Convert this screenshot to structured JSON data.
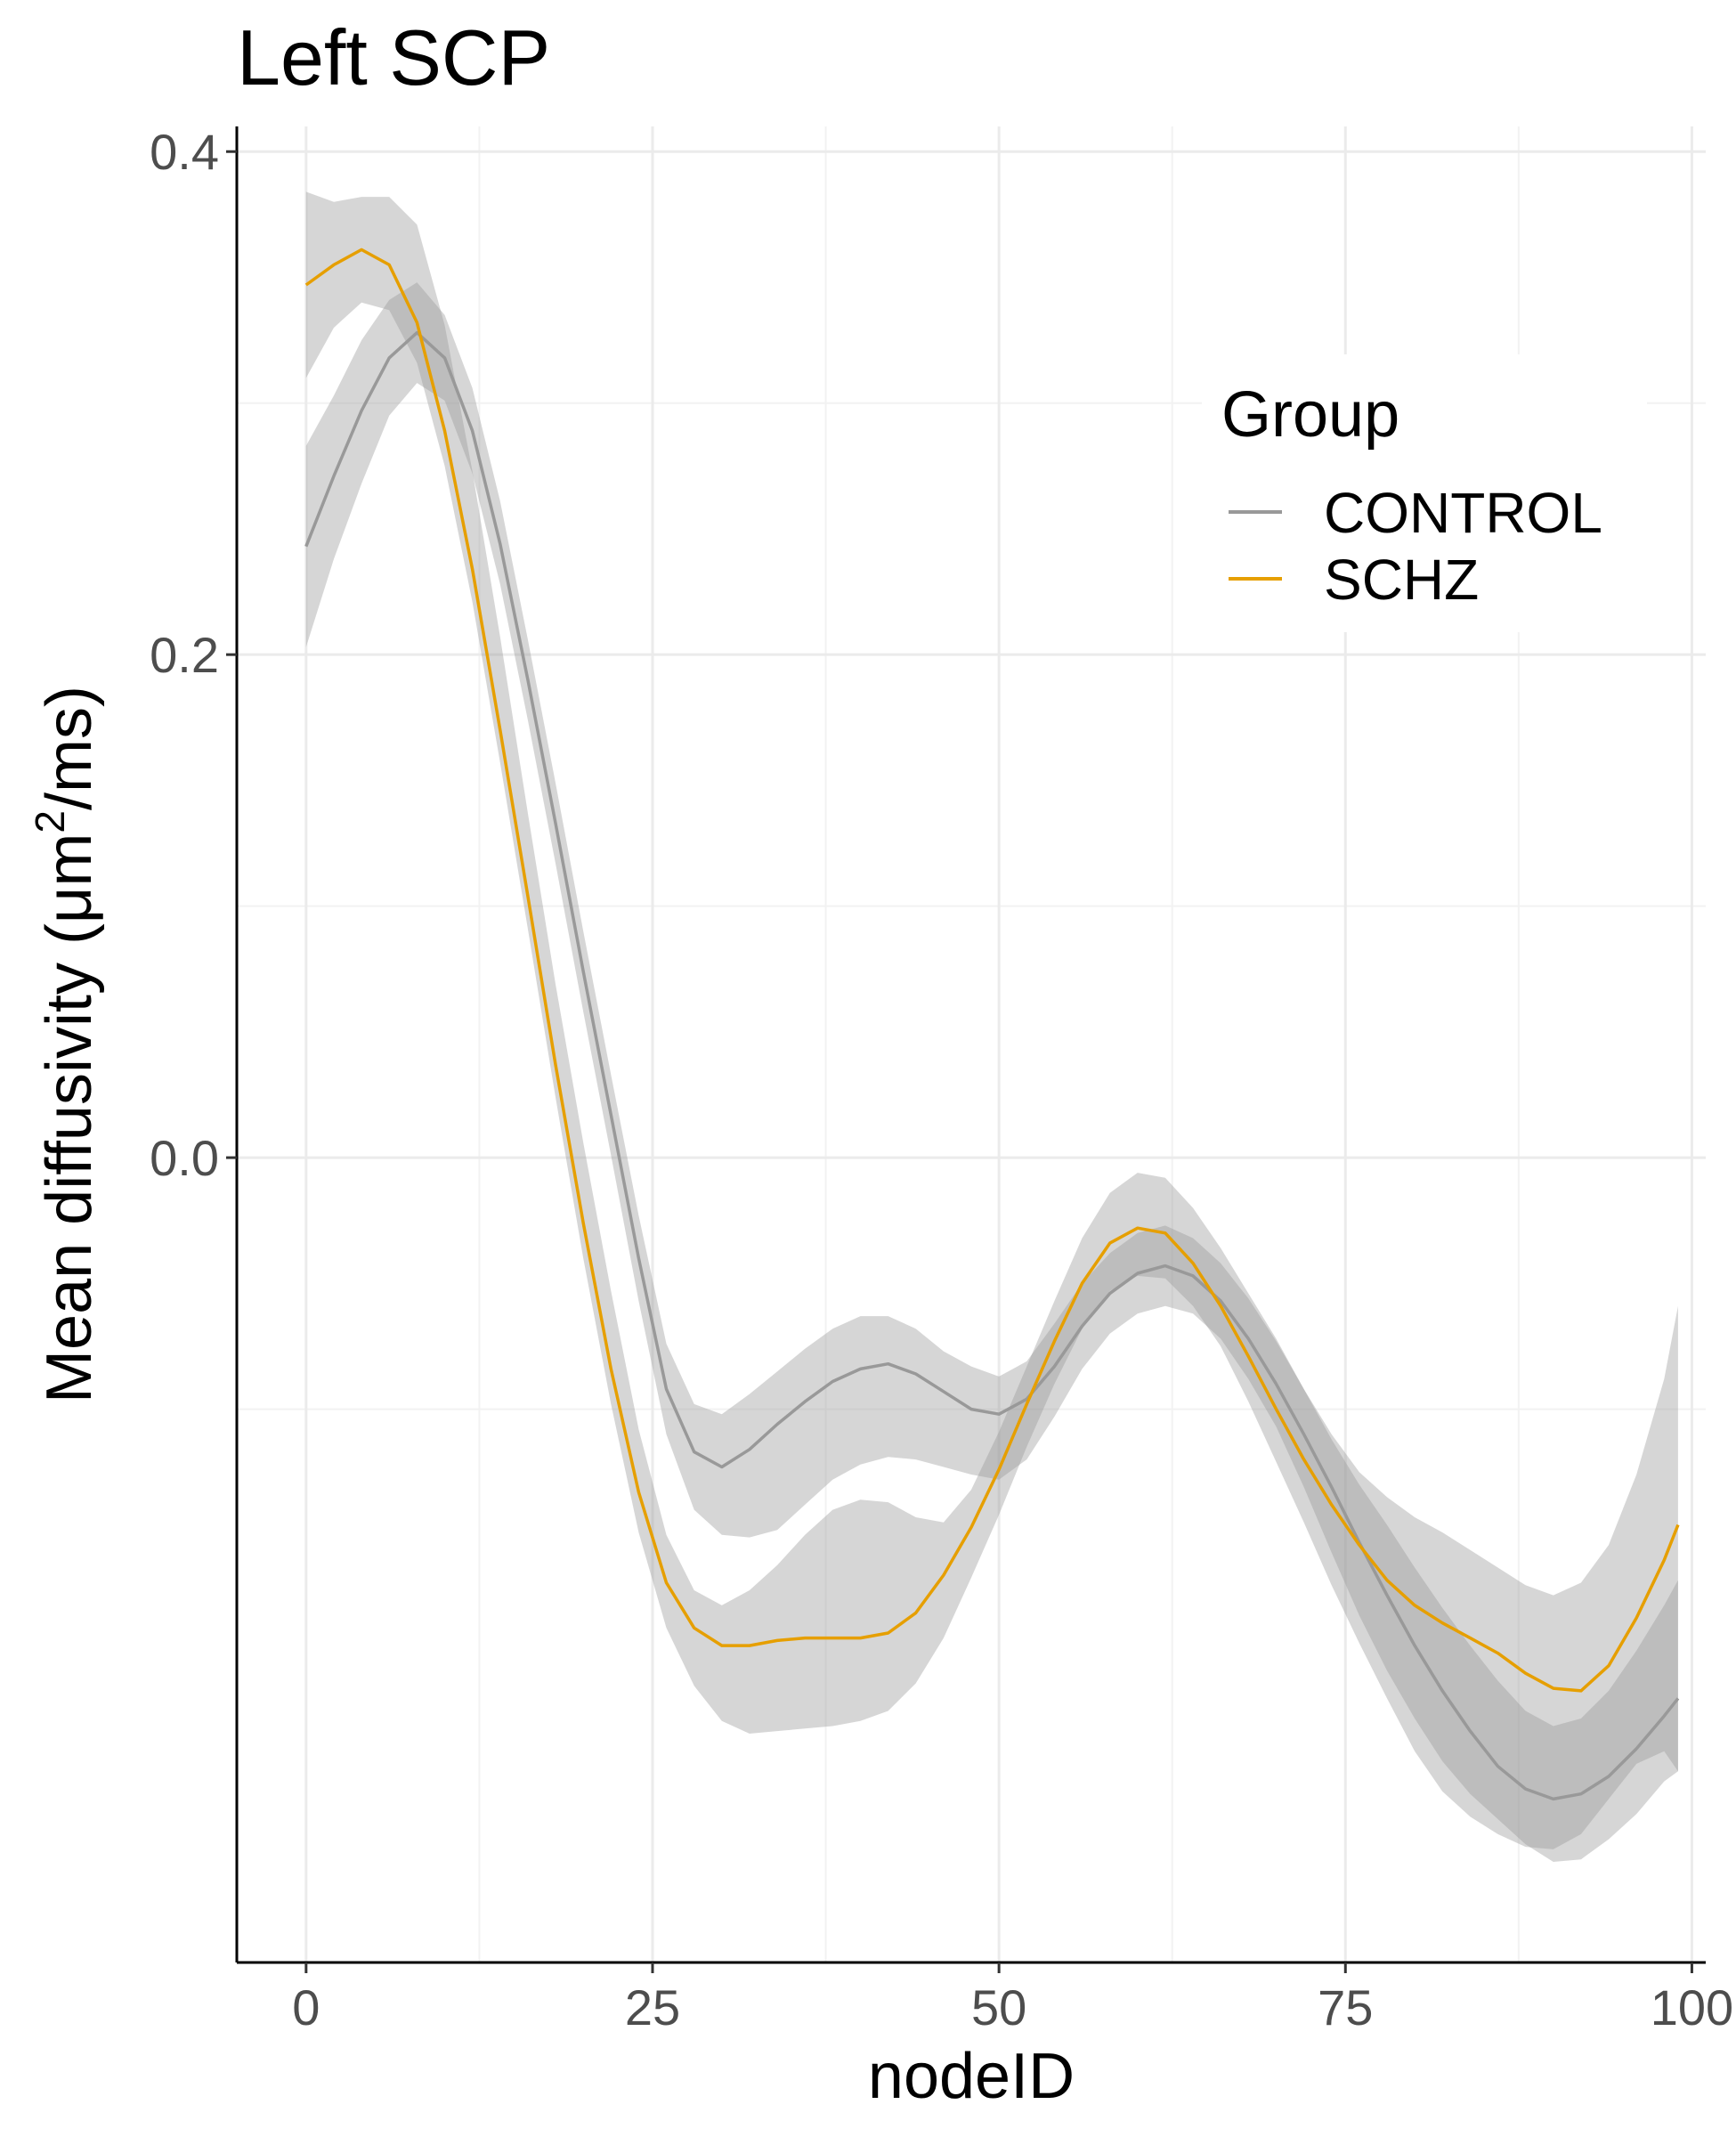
{
  "chart_data": {
    "type": "line",
    "title": "Left SCP",
    "xlabel": "nodeID",
    "ylabel": "Mean diffusivity (μm²/ms)",
    "ylabel_parts": {
      "main": "Mean diffusivity (μm",
      "sup": "2",
      "tail": "/ms)"
    },
    "xlim": [
      -5,
      101
    ],
    "ylim": [
      -0.32,
      0.41
    ],
    "x_ticks": [
      {
        "value": 0,
        "label": "0"
      },
      {
        "value": 25,
        "label": "25"
      },
      {
        "value": 50,
        "label": "50"
      },
      {
        "value": 75,
        "label": "75"
      },
      {
        "value": 100,
        "label": "100"
      }
    ],
    "y_ticks": [
      {
        "value": 0.0,
        "label": "0.0"
      },
      {
        "value": 0.2,
        "label": "0.2"
      },
      {
        "value": 0.4,
        "label": "0.4"
      }
    ],
    "y_minor_ticks": [
      -0.1,
      0.1,
      0.3
    ],
    "x_minor_ticks": [
      12.5,
      37.5,
      62.5,
      87.5
    ],
    "grid": true,
    "legend": {
      "title": "Group",
      "position": "top-right"
    },
    "series": [
      {
        "name": "CONTROL",
        "color": "#999999",
        "x": [
          0,
          2,
          4,
          6,
          8,
          10,
          12,
          14,
          16,
          18,
          20,
          22,
          24,
          26,
          28,
          30,
          32,
          34,
          36,
          38,
          40,
          42,
          44,
          46,
          48,
          50,
          52,
          54,
          56,
          58,
          60,
          62,
          64,
          66,
          68,
          70,
          72,
          74,
          76,
          78,
          80,
          82,
          84,
          86,
          88,
          90,
          92,
          94,
          96,
          98,
          99
        ],
        "y": [
          0.243,
          0.271,
          0.297,
          0.318,
          0.328,
          0.318,
          0.289,
          0.244,
          0.19,
          0.133,
          0.074,
          0.017,
          -0.04,
          -0.092,
          -0.117,
          -0.123,
          -0.116,
          -0.106,
          -0.097,
          -0.089,
          -0.084,
          -0.082,
          -0.086,
          -0.093,
          -0.1,
          -0.102,
          -0.096,
          -0.083,
          -0.067,
          -0.054,
          -0.046,
          -0.043,
          -0.047,
          -0.057,
          -0.072,
          -0.09,
          -0.11,
          -0.131,
          -0.153,
          -0.174,
          -0.194,
          -0.212,
          -0.228,
          -0.242,
          -0.251,
          -0.255,
          -0.253,
          -0.246,
          -0.235,
          -0.222,
          -0.215
        ],
        "lower": [
          0.203,
          0.238,
          0.268,
          0.295,
          0.308,
          0.301,
          0.272,
          0.228,
          0.174,
          0.117,
          0.058,
          0.001,
          -0.057,
          -0.11,
          -0.14,
          -0.15,
          -0.151,
          -0.148,
          -0.138,
          -0.128,
          -0.122,
          -0.119,
          -0.12,
          -0.123,
          -0.126,
          -0.128,
          -0.12,
          -0.103,
          -0.084,
          -0.07,
          -0.062,
          -0.059,
          -0.062,
          -0.072,
          -0.088,
          -0.107,
          -0.131,
          -0.157,
          -0.182,
          -0.204,
          -0.223,
          -0.24,
          -0.253,
          -0.263,
          -0.273,
          -0.28,
          -0.279,
          -0.271,
          -0.261,
          -0.248,
          -0.244
        ],
        "upper": [
          0.283,
          0.303,
          0.325,
          0.341,
          0.348,
          0.335,
          0.306,
          0.261,
          0.206,
          0.149,
          0.09,
          0.033,
          -0.023,
          -0.074,
          -0.098,
          -0.102,
          -0.094,
          -0.085,
          -0.076,
          -0.068,
          -0.063,
          -0.063,
          -0.068,
          -0.077,
          -0.083,
          -0.087,
          -0.081,
          -0.066,
          -0.05,
          -0.038,
          -0.03,
          -0.027,
          -0.032,
          -0.042,
          -0.056,
          -0.073,
          -0.092,
          -0.112,
          -0.13,
          -0.146,
          -0.163,
          -0.179,
          -0.194,
          -0.208,
          -0.22,
          -0.226,
          -0.223,
          -0.212,
          -0.196,
          -0.178,
          -0.168
        ]
      },
      {
        "name": "SCHZ",
        "color": "#E69F00",
        "x": [
          0,
          2,
          4,
          6,
          8,
          10,
          12,
          14,
          16,
          18,
          20,
          22,
          24,
          26,
          28,
          30,
          32,
          34,
          36,
          38,
          40,
          42,
          44,
          46,
          48,
          50,
          52,
          54,
          56,
          58,
          60,
          62,
          64,
          66,
          68,
          70,
          72,
          74,
          76,
          78,
          80,
          82,
          84,
          86,
          88,
          90,
          92,
          94,
          96,
          98,
          99
        ],
        "y": [
          0.347,
          0.355,
          0.361,
          0.355,
          0.332,
          0.289,
          0.234,
          0.17,
          0.104,
          0.037,
          -0.026,
          -0.084,
          -0.133,
          -0.169,
          -0.187,
          -0.194,
          -0.194,
          -0.192,
          -0.191,
          -0.191,
          -0.191,
          -0.189,
          -0.181,
          -0.166,
          -0.147,
          -0.124,
          -0.098,
          -0.073,
          -0.05,
          -0.034,
          -0.028,
          -0.03,
          -0.042,
          -0.059,
          -0.079,
          -0.1,
          -0.12,
          -0.138,
          -0.154,
          -0.168,
          -0.178,
          -0.185,
          -0.191,
          -0.197,
          -0.205,
          -0.211,
          -0.212,
          -0.202,
          -0.183,
          -0.16,
          -0.146
        ],
        "lower": [
          0.31,
          0.33,
          0.34,
          0.337,
          0.316,
          0.275,
          0.221,
          0.157,
          0.091,
          0.024,
          -0.04,
          -0.098,
          -0.149,
          -0.187,
          -0.21,
          -0.224,
          -0.229,
          -0.228,
          -0.227,
          -0.226,
          -0.224,
          -0.22,
          -0.209,
          -0.191,
          -0.167,
          -0.142,
          -0.115,
          -0.09,
          -0.068,
          -0.053,
          -0.047,
          -0.048,
          -0.059,
          -0.075,
          -0.097,
          -0.121,
          -0.145,
          -0.17,
          -0.193,
          -0.215,
          -0.236,
          -0.252,
          -0.262,
          -0.269,
          -0.274,
          -0.275,
          -0.269,
          -0.255,
          -0.241,
          -0.236,
          -0.244
        ],
        "upper": [
          0.384,
          0.38,
          0.382,
          0.382,
          0.371,
          0.331,
          0.273,
          0.207,
          0.137,
          0.069,
          0.006,
          -0.053,
          -0.108,
          -0.15,
          -0.172,
          -0.178,
          -0.172,
          -0.162,
          -0.15,
          -0.14,
          -0.136,
          -0.137,
          -0.143,
          -0.145,
          -0.132,
          -0.109,
          -0.083,
          -0.057,
          -0.032,
          -0.014,
          -0.006,
          -0.008,
          -0.02,
          -0.036,
          -0.054,
          -0.072,
          -0.092,
          -0.11,
          -0.125,
          -0.135,
          -0.143,
          -0.149,
          -0.156,
          -0.163,
          -0.17,
          -0.174,
          -0.169,
          -0.154,
          -0.126,
          -0.088,
          -0.059
        ]
      }
    ]
  }
}
